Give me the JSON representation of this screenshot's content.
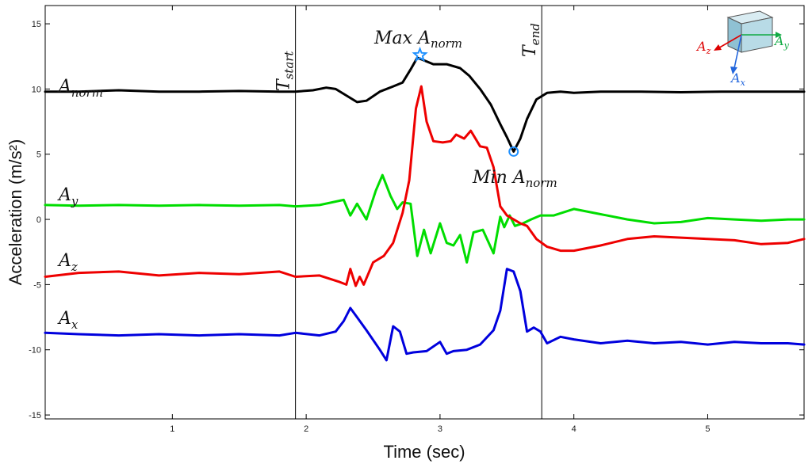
{
  "chart_data": {
    "type": "line",
    "xlabel": "Time (sec)",
    "ylabel": "Acceleration (m/s²)",
    "xlim": [
      0.05,
      5.72
    ],
    "ylim": [
      -15.3,
      16.4
    ],
    "x_ticks": [
      1,
      2,
      3,
      4,
      5
    ],
    "y_ticks": [
      -15,
      -10,
      -5,
      0,
      5,
      10,
      15
    ],
    "grid": false,
    "legend": "none",
    "series": [
      {
        "name": "A_norm",
        "label_main": "A",
        "label_sub": "norm",
        "color": "#000000",
        "x": [
          0.05,
          0.3,
          0.6,
          0.9,
          1.2,
          1.5,
          1.8,
          1.92,
          2.05,
          2.15,
          2.22,
          2.3,
          2.38,
          2.45,
          2.55,
          2.65,
          2.72,
          2.78,
          2.83,
          2.88,
          2.95,
          3.05,
          3.15,
          3.22,
          3.3,
          3.38,
          3.45,
          3.5,
          3.55,
          3.6,
          3.65,
          3.72,
          3.8,
          3.9,
          4.0,
          4.2,
          4.5,
          4.8,
          5.1,
          5.4,
          5.72
        ],
        "values": [
          9.8,
          9.8,
          9.9,
          9.8,
          9.8,
          9.85,
          9.8,
          9.8,
          9.9,
          10.1,
          10.0,
          9.5,
          9.0,
          9.1,
          9.8,
          10.2,
          10.5,
          11.5,
          12.4,
          12.2,
          11.9,
          11.9,
          11.6,
          11.0,
          10.0,
          8.8,
          7.3,
          6.3,
          5.2,
          6.2,
          7.7,
          9.2,
          9.7,
          9.8,
          9.7,
          9.8,
          9.8,
          9.75,
          9.8,
          9.8,
          9.8
        ]
      },
      {
        "name": "A_y",
        "label_main": "A",
        "label_sub": "y",
        "color": "#00dd00",
        "x": [
          0.05,
          0.3,
          0.6,
          0.9,
          1.2,
          1.5,
          1.8,
          1.92,
          2.1,
          2.28,
          2.33,
          2.38,
          2.45,
          2.52,
          2.57,
          2.63,
          2.68,
          2.72,
          2.78,
          2.83,
          2.88,
          2.93,
          3.0,
          3.05,
          3.1,
          3.15,
          3.2,
          3.25,
          3.32,
          3.4,
          3.45,
          3.48,
          3.52,
          3.56,
          3.62,
          3.68,
          3.75,
          3.85,
          4.0,
          4.2,
          4.4,
          4.6,
          4.8,
          5.0,
          5.2,
          5.4,
          5.6,
          5.72
        ],
        "values": [
          1.1,
          1.05,
          1.1,
          1.05,
          1.1,
          1.05,
          1.1,
          1.0,
          1.1,
          1.5,
          0.3,
          1.2,
          0.0,
          2.2,
          3.4,
          1.8,
          0.8,
          1.3,
          1.2,
          -2.8,
          -0.8,
          -2.6,
          -0.3,
          -1.8,
          -2.0,
          -1.2,
          -3.3,
          -1.0,
          -0.8,
          -2.6,
          0.2,
          -0.6,
          0.3,
          -0.5,
          -0.3,
          0.0,
          0.3,
          0.3,
          0.8,
          0.4,
          0.0,
          -0.3,
          -0.2,
          0.1,
          0.0,
          -0.1,
          0.0,
          0.0
        ]
      },
      {
        "name": "A_z",
        "label_main": "A",
        "label_sub": "z",
        "color": "#ee0000",
        "x": [
          0.05,
          0.3,
          0.6,
          0.9,
          1.2,
          1.5,
          1.8,
          1.92,
          2.1,
          2.25,
          2.3,
          2.33,
          2.37,
          2.4,
          2.43,
          2.5,
          2.58,
          2.65,
          2.72,
          2.77,
          2.82,
          2.86,
          2.9,
          2.95,
          3.02,
          3.08,
          3.12,
          3.18,
          3.23,
          3.3,
          3.35,
          3.4,
          3.45,
          3.5,
          3.55,
          3.6,
          3.65,
          3.72,
          3.8,
          3.9,
          4.0,
          4.2,
          4.4,
          4.6,
          4.8,
          5.0,
          5.2,
          5.4,
          5.6,
          5.72
        ],
        "values": [
          -4.4,
          -4.1,
          -4.0,
          -4.3,
          -4.1,
          -4.2,
          -4.0,
          -4.4,
          -4.3,
          -4.8,
          -5.0,
          -3.8,
          -5.1,
          -4.4,
          -5.0,
          -3.3,
          -2.8,
          -1.8,
          0.5,
          3.0,
          8.5,
          10.2,
          7.5,
          6.0,
          5.9,
          6.0,
          6.5,
          6.2,
          6.8,
          5.6,
          5.5,
          4.0,
          1.0,
          0.3,
          0.0,
          -0.3,
          -0.5,
          -1.5,
          -2.1,
          -2.4,
          -2.4,
          -2.0,
          -1.5,
          -1.3,
          -1.4,
          -1.5,
          -1.6,
          -1.9,
          -1.8,
          -1.5
        ]
      },
      {
        "name": "A_x",
        "label_main": "A",
        "label_sub": "x",
        "color": "#0000dd",
        "x": [
          0.05,
          0.3,
          0.6,
          0.9,
          1.2,
          1.5,
          1.8,
          1.92,
          2.1,
          2.22,
          2.28,
          2.33,
          2.38,
          2.45,
          2.55,
          2.6,
          2.65,
          2.7,
          2.75,
          2.8,
          2.9,
          3.0,
          3.05,
          3.1,
          3.2,
          3.3,
          3.4,
          3.45,
          3.5,
          3.55,
          3.6,
          3.65,
          3.7,
          3.75,
          3.8,
          3.9,
          4.0,
          4.2,
          4.4,
          4.6,
          4.8,
          5.0,
          5.2,
          5.4,
          5.6,
          5.72
        ],
        "values": [
          -8.7,
          -8.8,
          -8.9,
          -8.8,
          -8.9,
          -8.8,
          -8.9,
          -8.7,
          -8.9,
          -8.6,
          -7.8,
          -6.8,
          -7.5,
          -8.5,
          -10.0,
          -10.8,
          -8.2,
          -8.6,
          -10.3,
          -10.2,
          -10.1,
          -9.4,
          -10.3,
          -10.1,
          -10.0,
          -9.6,
          -8.5,
          -7.0,
          -3.8,
          -4.0,
          -5.5,
          -8.6,
          -8.3,
          -8.6,
          -9.5,
          -9.0,
          -9.2,
          -9.5,
          -9.3,
          -9.5,
          -9.4,
          -9.6,
          -9.4,
          -9.5,
          -9.5,
          -9.6
        ]
      }
    ],
    "vlines": [
      {
        "x": 1.92,
        "label_main": "T",
        "label_sub": "start"
      },
      {
        "x": 3.76,
        "label_main": "T",
        "label_sub": "end"
      }
    ],
    "markers": [
      {
        "shape": "star",
        "x": 2.85,
        "y": 12.6,
        "color": "#1e90ff",
        "label_main": "Max A",
        "label_sub": "norm"
      },
      {
        "shape": "circle",
        "x": 3.55,
        "y": 5.2,
        "color": "#1e90ff",
        "label_main": "Min A",
        "label_sub": "norm"
      }
    ],
    "inset": {
      "axes": [
        "A_z",
        "A_y",
        "A_x"
      ]
    }
  }
}
